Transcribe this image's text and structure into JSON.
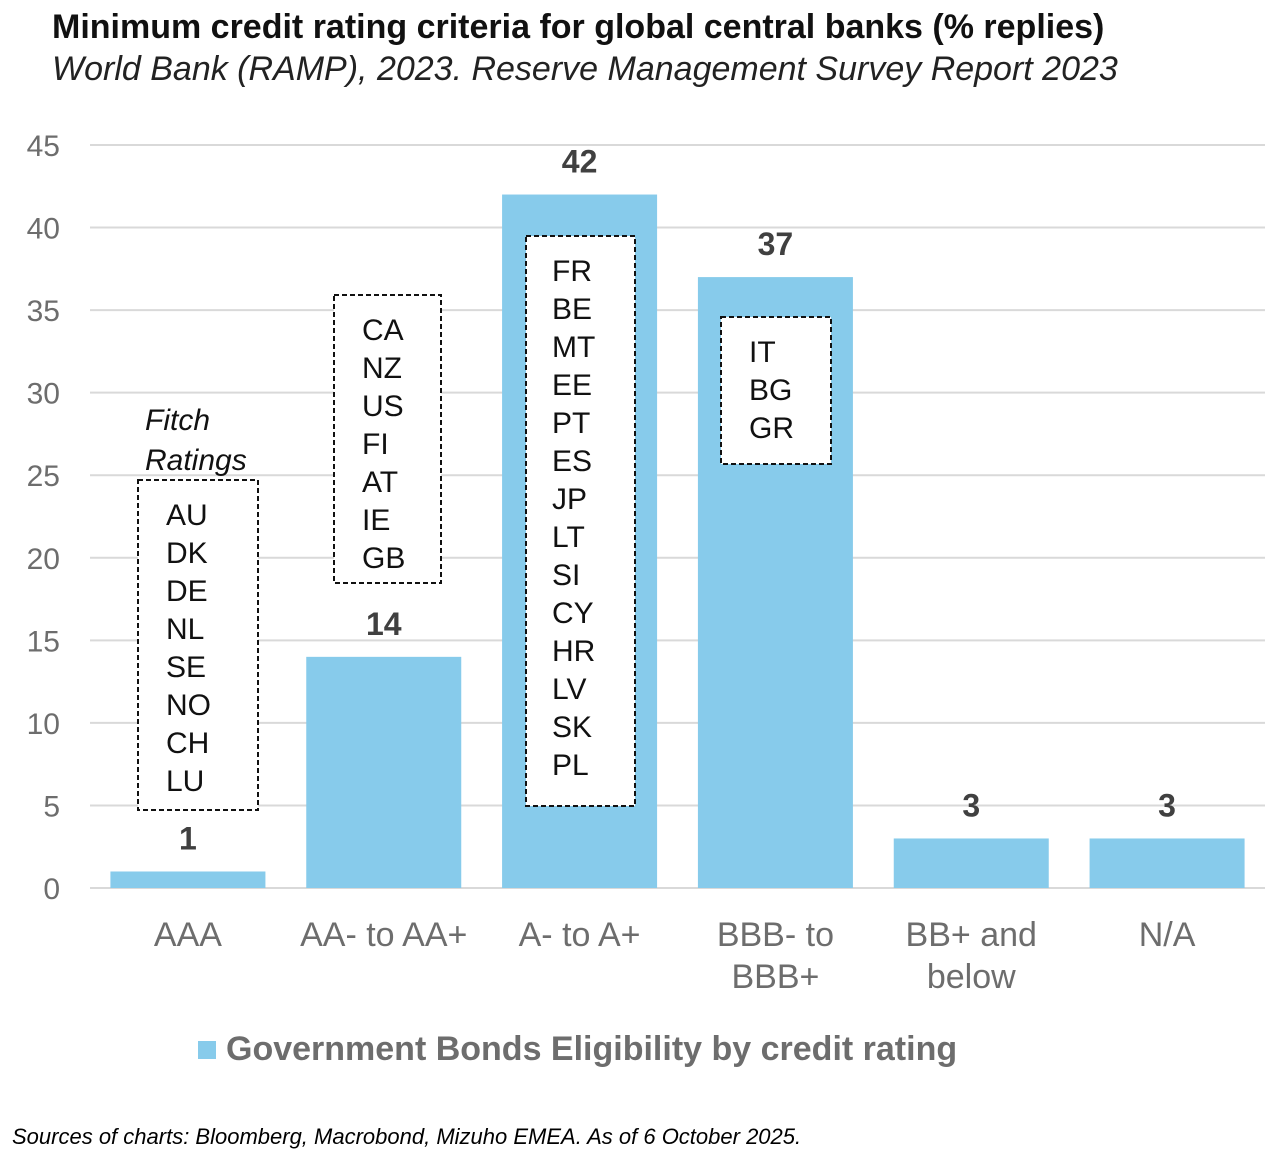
{
  "header": {
    "title": "Minimum credit rating criteria for global central banks (% replies)",
    "subtitle": "World Bank (RAMP), 2023. Reserve Management Survey Report 2023"
  },
  "colors": {
    "bar": "#87CBEB",
    "grid": "#d9d9d9",
    "axis_text": "#6d6d6d"
  },
  "chart_data": {
    "type": "bar",
    "title": "Minimum credit rating criteria for global central banks (% replies)",
    "categories": [
      [
        "AAA"
      ],
      [
        "AA- to AA+"
      ],
      [
        "A- to A+"
      ],
      [
        "BBB- to",
        "BBB+"
      ],
      [
        "BB+ and",
        "below"
      ],
      [
        "N/A"
      ]
    ],
    "series": [
      {
        "name": "Government Bonds Eligibility by credit rating",
        "values": [
          1,
          14,
          42,
          37,
          3,
          3
        ]
      }
    ],
    "data_labels": [
      "1",
      "14",
      "42",
      "37",
      "3",
      "3"
    ],
    "ylim": [
      0,
      45
    ],
    "yticks": [
      0,
      5,
      10,
      15,
      20,
      25,
      30,
      35,
      40,
      45
    ],
    "grid": true,
    "legend_position": "bottom",
    "annotations": [
      {
        "category_index": 0,
        "title": [
          "Fitch",
          "Ratings"
        ],
        "items": [
          "AU",
          "DK",
          "DE",
          "NL",
          "SE",
          "NO",
          "CH",
          "LU"
        ]
      },
      {
        "category_index": 1,
        "title": [],
        "items": [
          "CA",
          "NZ",
          "US",
          "FI",
          "AT",
          "IE",
          "GB"
        ]
      },
      {
        "category_index": 2,
        "title": [],
        "items": [
          "FR",
          "BE",
          "MT",
          "EE",
          "PT",
          "ES",
          "JP",
          "LT",
          "SI",
          "CY",
          "HR",
          "LV",
          "SK",
          "PL"
        ]
      },
      {
        "category_index": 3,
        "title": [],
        "items": [
          "IT",
          "BG",
          "GR"
        ]
      }
    ]
  },
  "legend": {
    "label": "Government Bonds Eligibility by credit rating"
  },
  "footer": {
    "source": "Sources of charts: Bloomberg, Macrobond, Mizuho EMEA. As of 6 October 2025."
  }
}
